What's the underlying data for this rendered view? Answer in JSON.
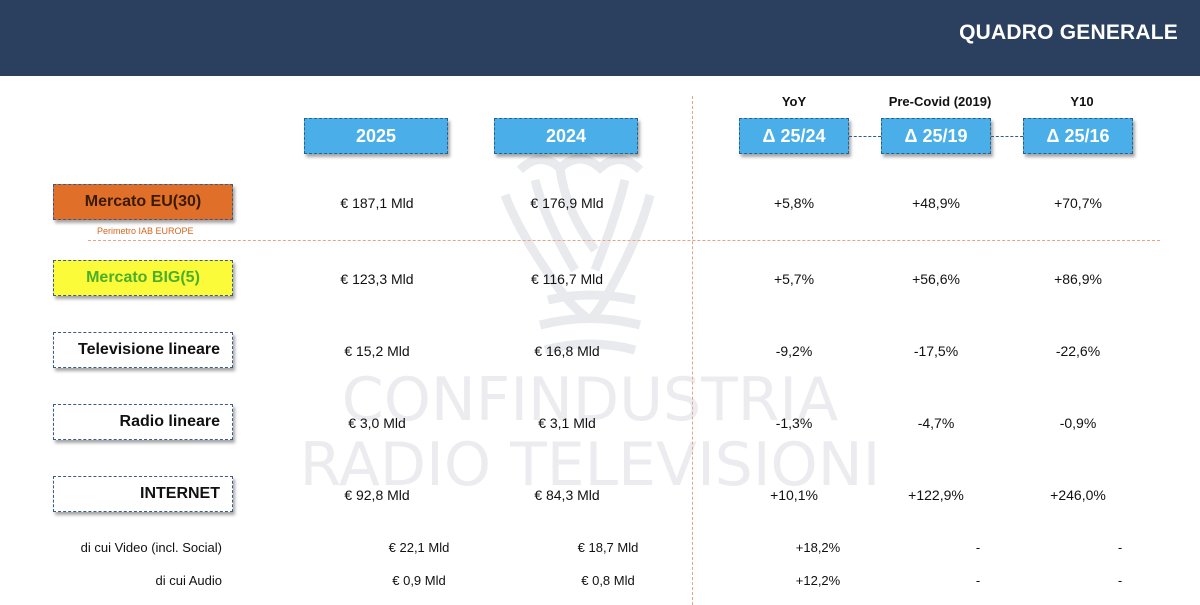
{
  "header": {
    "title": "QUADRO GENERALE"
  },
  "watermark": {
    "line1": "CONFINDUSTRIA",
    "line2": "RADIO TELEVISIONI"
  },
  "columns": {
    "top_labels": [
      "YoY",
      "Pre-Covid (2019)",
      "Y10"
    ],
    "boxes": [
      "2025",
      "2024",
      "Δ 25/24",
      "Δ 25/19",
      "Δ 25/16"
    ]
  },
  "rows": [
    {
      "label": "Mercato EU(30)",
      "note": "Perimetro IAB EUROPE",
      "v2025": "€ 187,1 Mld",
      "v2024": "€ 176,9 Mld",
      "yoy": "+5,8%",
      "precovid": "+48,9%",
      "y10": "+70,7%"
    },
    {
      "label": "Mercato BIG(5)",
      "v2025": "€ 123,3 Mld",
      "v2024": "€ 116,7 Mld",
      "yoy": "+5,7%",
      "precovid": "+56,6%",
      "y10": "+86,9%"
    },
    {
      "label": "Televisione lineare",
      "v2025": "€ 15,2 Mld",
      "v2024": "€ 16,8 Mld",
      "yoy": "-9,2%",
      "precovid": "-17,5%",
      "y10": "-22,6%"
    },
    {
      "label": "Radio lineare",
      "v2025": "€ 3,0 Mld",
      "v2024": "€ 3,1 Mld",
      "yoy": "-1,3%",
      "precovid": "-4,7%",
      "y10": "-0,9%"
    },
    {
      "label": "INTERNET",
      "v2025": "€ 92,8 Mld",
      "v2024": "€ 84,3 Mld",
      "yoy": "+10,1%",
      "precovid": "+122,9%",
      "y10": "+246,0%"
    }
  ],
  "subrows": [
    {
      "label": "di cui Video (incl. Social)",
      "v2025": "€ 22,1 Mld",
      "v2024": "€ 18,7 Mld",
      "yoy": "+18,2%",
      "precovid": "-",
      "y10": "-"
    },
    {
      "label": "di cui Audio",
      "v2025": "€ 0,9 Mld",
      "v2024": "€ 0,8 Mld",
      "yoy": "+12,2%",
      "precovid": "-",
      "y10": "-"
    }
  ],
  "colors": {
    "header_bg": "#2b3f5e",
    "box_blue": "#4aaee8",
    "orange": "#e06f2a",
    "yellow": "#fbfb3a",
    "green_text": "#4cae2a"
  }
}
